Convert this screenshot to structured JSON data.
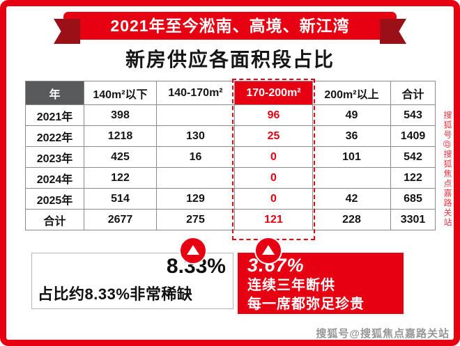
{
  "banner": {
    "title": "2021年至今淞南、高境、新江湾"
  },
  "page_title": "新房供应各面积段占比",
  "chart_data": {
    "type": "table",
    "title": "新房供应各面积段占比",
    "columns": [
      "年",
      "140m²以下",
      "140-170m²",
      "170-200m²",
      "200m²以上",
      "合计"
    ],
    "rows": [
      [
        "2021年",
        "398",
        "",
        "96",
        "49",
        "543"
      ],
      [
        "2022年",
        "1218",
        "130",
        "25",
        "36",
        "1409"
      ],
      [
        "2023年",
        "425",
        "16",
        "0",
        "101",
        "542"
      ],
      [
        "2024年",
        "122",
        "",
        "0",
        "",
        "122"
      ],
      [
        "2025年",
        "514",
        "129",
        "0",
        "42",
        "685"
      ],
      [
        "合计",
        "2677",
        "275",
        "121",
        "228",
        "3301"
      ]
    ],
    "highlighted_column": "170-200m²",
    "highlighted_column_index": 3,
    "total_row_label": "合计"
  },
  "callouts": {
    "left": {
      "percent": "8.33%",
      "caption": "占比约8.33%非常稀缺"
    },
    "right": {
      "percent": "3.67%",
      "line1": "连续三年断供",
      "line2": "每一席都弥足珍贵"
    }
  },
  "watermark": "搜狐号@搜狐焦点嘉路关站",
  "colors": {
    "accent_red": "#e60012",
    "dark_red": "#9a1016",
    "header_gray": "#595a5c",
    "table_border": "#8a8a8a",
    "watermark_gray": "#979797"
  }
}
